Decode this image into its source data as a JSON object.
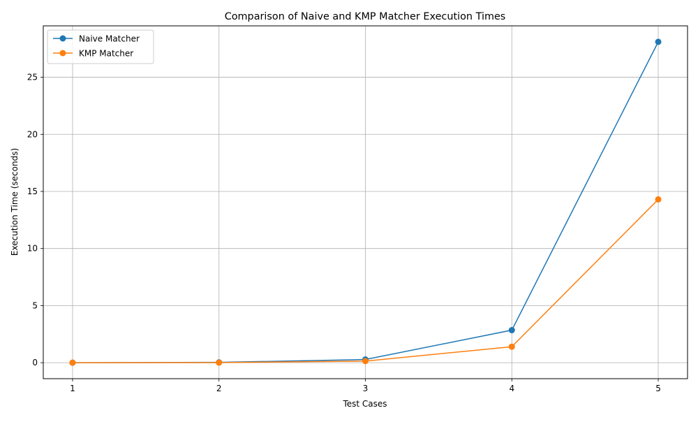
{
  "chart_data": {
    "type": "line",
    "title": "Comparison of Naive and KMP Matcher Execution Times",
    "xlabel": "Test Cases",
    "ylabel": "Execution Time (seconds)",
    "x": [
      1,
      2,
      3,
      4,
      5
    ],
    "x_tick_labels": [
      "1",
      "2",
      "3",
      "4",
      "5"
    ],
    "xlim": [
      0.8,
      5.2
    ],
    "ylim": [
      -1.4,
      29.5
    ],
    "y_ticks": [
      0,
      5,
      10,
      15,
      20,
      25
    ],
    "y_tick_labels": [
      "0",
      "5",
      "10",
      "15",
      "20",
      "25"
    ],
    "grid": true,
    "legend_position": "top-left",
    "series": [
      {
        "name": "Naive Matcher",
        "values": [
          0.0,
          0.03,
          0.28,
          2.85,
          28.1
        ],
        "color": "#1f77b4",
        "marker": "circle"
      },
      {
        "name": "KMP Matcher",
        "values": [
          0.0,
          0.01,
          0.14,
          1.4,
          14.3
        ],
        "color": "#ff7f0e",
        "marker": "circle"
      }
    ]
  }
}
